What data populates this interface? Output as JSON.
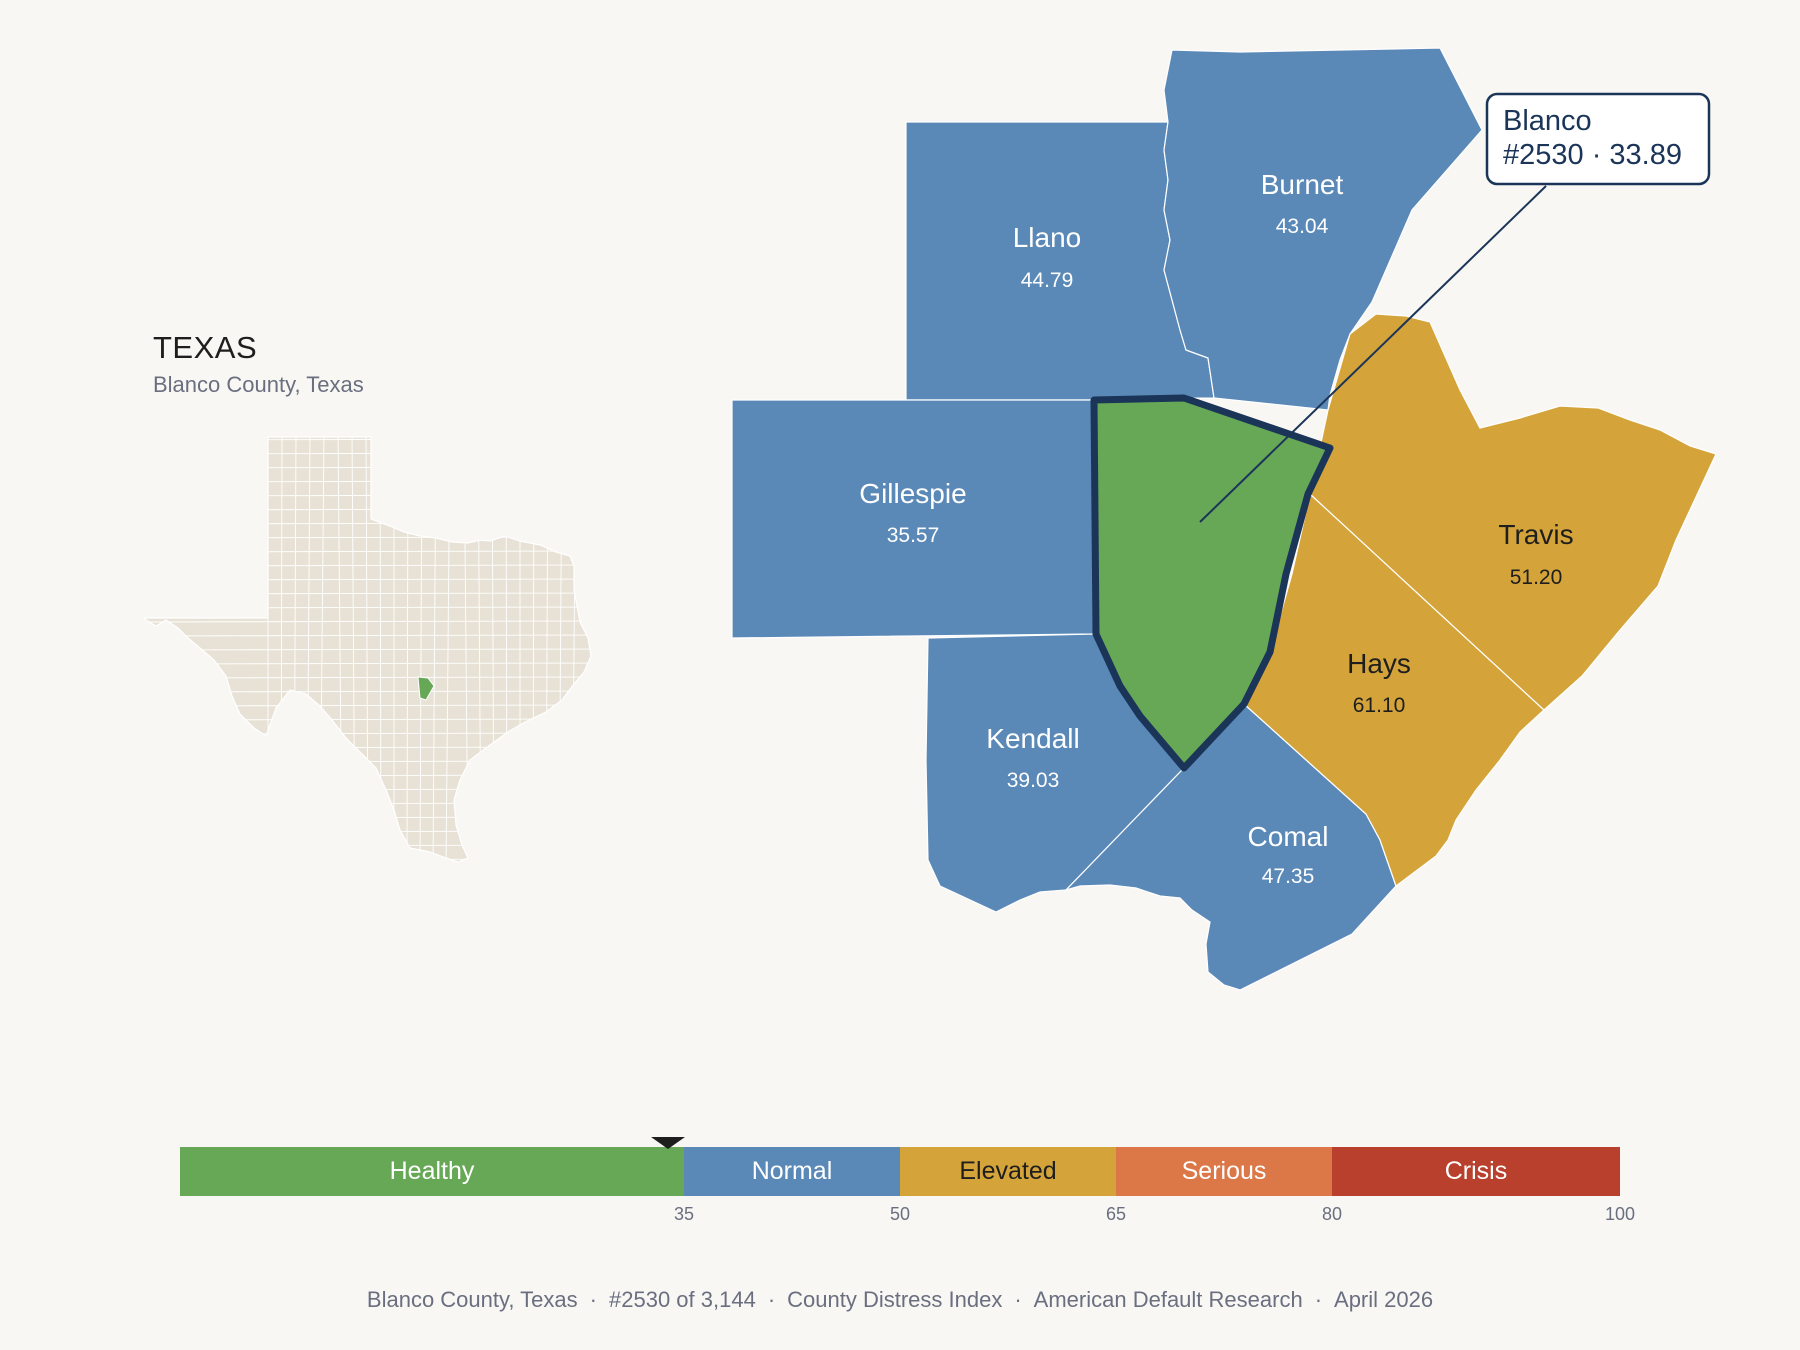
{
  "inset": {
    "title": "TEXAS",
    "subtitle": "Blanco County, Texas"
  },
  "counties": [
    {
      "id": "blanco",
      "name": "Blanco",
      "value": 33.89,
      "value_label": "",
      "category": "Healthy",
      "highlighted": true
    },
    {
      "id": "llano",
      "name": "Llano",
      "value": 44.79,
      "value_label": "44.79",
      "category": "Normal"
    },
    {
      "id": "burnet",
      "name": "Burnet",
      "value": 43.04,
      "value_label": "43.04",
      "category": "Normal"
    },
    {
      "id": "gillespie",
      "name": "Gillespie",
      "value": 35.57,
      "value_label": "35.57",
      "category": "Normal"
    },
    {
      "id": "kendall",
      "name": "Kendall",
      "value": 39.03,
      "value_label": "39.03",
      "category": "Normal"
    },
    {
      "id": "comal",
      "name": "Comal",
      "value": 47.35,
      "value_label": "47.35",
      "category": "Normal"
    },
    {
      "id": "hays",
      "name": "Hays",
      "value": 61.1,
      "value_label": "61.10",
      "category": "Elevated"
    },
    {
      "id": "travis",
      "name": "Travis",
      "value": 51.2,
      "value_label": "51.20",
      "category": "Elevated"
    }
  ],
  "callout": {
    "line1": "Blanco",
    "line2": "#2530 · 33.89"
  },
  "legend": {
    "marker_value": 33.89,
    "bands": [
      {
        "label": "Healthy",
        "from": 0,
        "to": 35,
        "color": "#67a857"
      },
      {
        "label": "Normal",
        "from": 35,
        "to": 50,
        "color": "#5a89b8"
      },
      {
        "label": "Elevated",
        "from": 50,
        "to": 65,
        "color": "#d4a43a"
      },
      {
        "label": "Serious",
        "from": 65,
        "to": 80,
        "color": "#dc7848"
      },
      {
        "label": "Crisis",
        "from": 80,
        "to": 100,
        "color": "#b9402d"
      }
    ],
    "ticks": [
      "35",
      "50",
      "65",
      "80",
      "100"
    ]
  },
  "footer": {
    "county": "Blanco County, Texas",
    "rank": "#2530 of 3,144",
    "index": "County Distress Index",
    "source": "American Default Research",
    "date": "April 2026"
  },
  "colors": {
    "healthy": "#67a857",
    "normal": "#5a89b8",
    "elevated": "#d4a43a",
    "outline": "#1b3558",
    "inset_land": "#e8e2d6",
    "background": "#f9f7f4"
  }
}
